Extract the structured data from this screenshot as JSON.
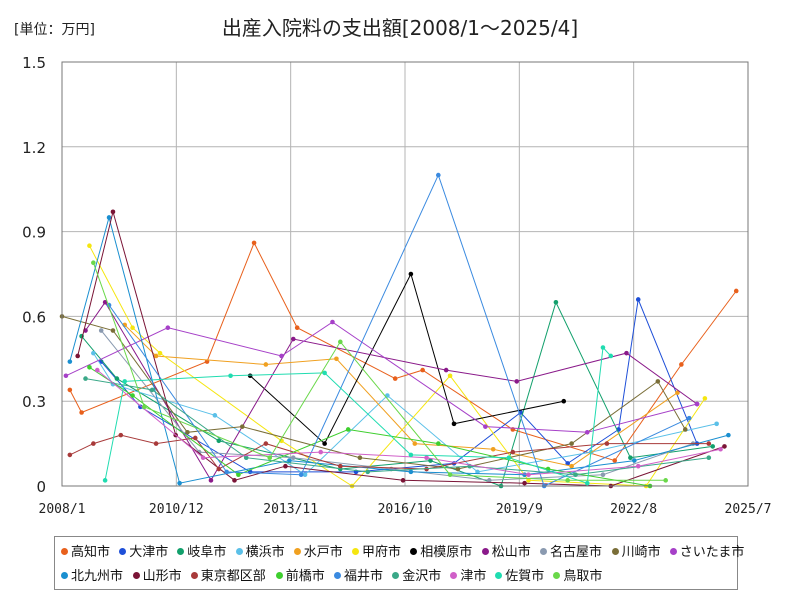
{
  "chart_data": {
    "type": "line",
    "title": "出産入院料の支出額[2008/1～2025/4]",
    "unit_label": "[単位：万円]",
    "x_ticks": [
      "2008/1",
      "2010/12",
      "2013/11",
      "2016/10",
      "2019/9",
      "2022/8",
      "2025/7"
    ],
    "y_ticks": [
      "0",
      "0.3",
      "0.6",
      "0.9",
      "1.2",
      "1.5"
    ],
    "ylim": [
      0,
      1.5
    ],
    "xlim": [
      2008.0,
      2025.5
    ],
    "series": [
      {
        "name": "高知市",
        "color": "#e8601c",
        "x": [
          2008.2,
          2008.5,
          2011.7,
          2012.9,
          2014.0,
          2016.5,
          2017.2,
          2019.5,
          2022.1,
          2023.8,
          2025.2
        ],
        "y": [
          0.34,
          0.26,
          0.44,
          0.86,
          0.56,
          0.38,
          0.41,
          0.2,
          0.09,
          0.43,
          0.69
        ]
      },
      {
        "name": "大津市",
        "color": "#1e4fd8",
        "x": [
          2009.0,
          2010.0,
          2012.8,
          2015.5,
          2018.0,
          2019.7,
          2020.9,
          2022.2,
          2022.7,
          2024.2
        ],
        "y": [
          0.44,
          0.28,
          0.05,
          0.05,
          0.08,
          0.26,
          0.08,
          0.2,
          0.66,
          0.15
        ]
      },
      {
        "name": "岐阜市",
        "color": "#12a06c",
        "x": [
          2008.5,
          2009.4,
          2012.0,
          2015.1,
          2017.4,
          2019.2,
          2020.6,
          2022.5,
          2024.6
        ],
        "y": [
          0.53,
          0.38,
          0.16,
          0.06,
          0.09,
          0.0,
          0.65,
          0.1,
          0.14
        ]
      },
      {
        "name": "横浜市",
        "color": "#5bc0e8",
        "x": [
          2008.8,
          2009.3,
          2011.9,
          2014.2,
          2016.3,
          2018.6,
          2021.5,
          2024.7
        ],
        "y": [
          0.47,
          0.36,
          0.25,
          0.04,
          0.32,
          0.05,
          0.12,
          0.22
        ]
      },
      {
        "name": "水戸市",
        "color": "#f0a020",
        "x": [
          2009.6,
          2010.4,
          2013.2,
          2015.0,
          2017.0,
          2019.0,
          2021.0,
          2023.7
        ],
        "y": [
          0.57,
          0.46,
          0.43,
          0.45,
          0.15,
          0.13,
          0.07,
          0.33
        ]
      },
      {
        "name": "甲府市",
        "color": "#f5e610",
        "x": [
          2008.7,
          2009.8,
          2010.5,
          2013.6,
          2015.4,
          2017.9,
          2019.9,
          2022.9,
          2024.4
        ],
        "y": [
          0.85,
          0.56,
          0.47,
          0.16,
          0.0,
          0.39,
          0.02,
          0.0,
          0.31
        ]
      },
      {
        "name": "相模原市",
        "color": "#000000",
        "x": [
          2012.8,
          2014.7,
          2016.9,
          2018.0,
          2020.8
        ],
        "y": [
          0.39,
          0.15,
          0.75,
          0.22,
          0.3
        ]
      },
      {
        "name": "松山市",
        "color": "#8a1a8a",
        "x": [
          2008.6,
          2009.1,
          2011.8,
          2013.9,
          2017.8,
          2019.6,
          2022.4,
          2024.2
        ],
        "y": [
          0.55,
          0.65,
          0.02,
          0.52,
          0.41,
          0.37,
          0.47,
          0.29
        ]
      },
      {
        "name": "名古屋市",
        "color": "#8a9ab0",
        "x": [
          2009.0,
          2011.5,
          2013.9,
          2016.4,
          2018.9,
          2021.8,
          2024.1
        ],
        "y": [
          0.55,
          0.12,
          0.1,
          0.06,
          0.02,
          0.04,
          0.15
        ]
      },
      {
        "name": "川崎市",
        "color": "#7a6e38",
        "x": [
          2008.0,
          2009.3,
          2011.2,
          2012.6,
          2015.6,
          2018.1,
          2021.0,
          2023.2,
          2023.9
        ],
        "y": [
          0.6,
          0.55,
          0.19,
          0.21,
          0.1,
          0.06,
          0.15,
          0.37,
          0.2
        ]
      },
      {
        "name": "さいたま市",
        "color": "#a640c8",
        "x": [
          2008.1,
          2010.7,
          2013.6,
          2014.9,
          2018.8,
          2021.4,
          2024.2
        ],
        "y": [
          0.39,
          0.56,
          0.46,
          0.58,
          0.21,
          0.19,
          0.29
        ]
      },
      {
        "name": "北九州市",
        "color": "#1a8fd0",
        "x": [
          2008.2,
          2009.2,
          2011.0,
          2013.8,
          2016.9,
          2019.8,
          2022.6,
          2025.0
        ],
        "y": [
          0.44,
          0.95,
          0.01,
          0.09,
          0.05,
          0.04,
          0.09,
          0.18
        ]
      },
      {
        "name": "山形市",
        "color": "#7a1436",
        "x": [
          2008.4,
          2009.3,
          2010.9,
          2012.4,
          2013.7,
          2016.7,
          2019.8,
          2022.0,
          2024.9
        ],
        "y": [
          0.46,
          0.97,
          0.18,
          0.02,
          0.07,
          0.02,
          0.01,
          0.0,
          0.14
        ]
      },
      {
        "name": "東京都区部",
        "color": "#a83a3a",
        "x": [
          2008.2,
          2008.8,
          2009.5,
          2010.4,
          2011.4,
          2012.0,
          2013.2,
          2015.1,
          2017.3,
          2019.5,
          2021.9,
          2024.5
        ],
        "y": [
          0.11,
          0.15,
          0.18,
          0.15,
          0.17,
          0.06,
          0.15,
          0.07,
          0.06,
          0.12,
          0.15,
          0.15
        ]
      },
      {
        "name": "前橋市",
        "color": "#3ecf2e",
        "x": [
          2008.7,
          2009.8,
          2012.5,
          2015.3,
          2017.6,
          2020.4,
          2023.0
        ],
        "y": [
          0.42,
          0.32,
          0.04,
          0.2,
          0.15,
          0.06,
          0.0
        ]
      },
      {
        "name": "福井市",
        "color": "#3a8ae0",
        "x": [
          2009.2,
          2012.2,
          2014.1,
          2017.6,
          2020.3,
          2024.0
        ],
        "y": [
          0.64,
          0.05,
          0.04,
          1.1,
          0.0,
          0.24
        ]
      },
      {
        "name": "金沢市",
        "color": "#3aa888",
        "x": [
          2008.6,
          2010.3,
          2012.7,
          2015.8,
          2018.4,
          2021.1,
          2024.5
        ],
        "y": [
          0.38,
          0.34,
          0.1,
          0.05,
          0.07,
          0.04,
          0.1
        ]
      },
      {
        "name": "津市",
        "color": "#d060c8",
        "x": [
          2008.9,
          2011.6,
          2014.6,
          2017.3,
          2019.9,
          2022.7,
          2024.8
        ],
        "y": [
          0.41,
          0.1,
          0.12,
          0.1,
          0.04,
          0.07,
          0.13
        ]
      },
      {
        "name": "佐賀市",
        "color": "#20dcb0",
        "x": [
          2009.1,
          2009.6,
          2012.3,
          2014.7,
          2016.9,
          2019.4,
          2021.4,
          2021.8,
          2022.0
        ],
        "y": [
          0.02,
          0.37,
          0.39,
          0.4,
          0.11,
          0.1,
          0.01,
          0.49,
          0.46
        ]
      },
      {
        "name": "鳥取市",
        "color": "#6ad84a",
        "x": [
          2008.8,
          2010.1,
          2013.3,
          2015.1,
          2017.9,
          2020.9,
          2023.4
        ],
        "y": [
          0.79,
          0.28,
          0.1,
          0.51,
          0.04,
          0.02,
          0.02
        ]
      }
    ]
  }
}
